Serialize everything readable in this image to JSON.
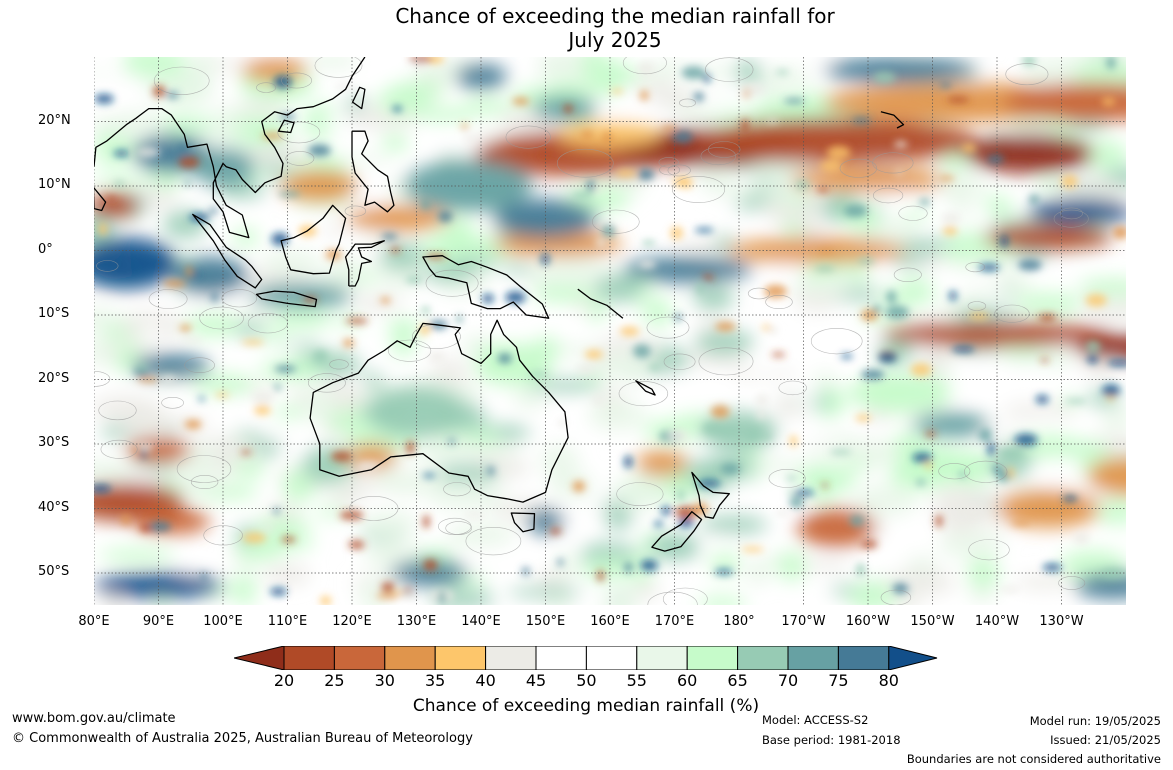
{
  "title_line1": "Chance of exceeding the median rainfall for",
  "title_line2": "July 2025",
  "lat_labels": [
    "20°N",
    "10°N",
    "0°",
    "10°S",
    "20°S",
    "30°S",
    "40°S",
    "50°S"
  ],
  "lon_labels": [
    "80°E",
    "90°E",
    "100°E",
    "110°E",
    "120°E",
    "130°E",
    "140°E",
    "150°E",
    "160°E",
    "170°E",
    "180°",
    "170°W",
    "160°W",
    "150°W",
    "140°W",
    "130°W"
  ],
  "legend": {
    "ticks": [
      "20",
      "25",
      "30",
      "35",
      "40",
      "45",
      "50",
      "55",
      "60",
      "65",
      "70",
      "75",
      "80"
    ],
    "colors": [
      "#8f2d1a",
      "#b04a27",
      "#c9673a",
      "#e0954c",
      "#fdc66b",
      "#ecebe6",
      "#ffffff",
      "#ffffff",
      "#e9f7e9",
      "#c6fbca",
      "#97cbb4",
      "#67a1a3",
      "#457a96",
      "#124f8a"
    ],
    "caption": "Chance of exceeding median rainfall (%)"
  },
  "footer": {
    "website": "www.bom.gov.au/climate",
    "copyright": "© Commonwealth of Australia 2025, Australian Bureau of Meteorology",
    "model": "Model: ACCESS-S2",
    "base_period": "Base period: 1981-2018",
    "model_run": "Model run: 19/05/2025",
    "issued": "Issued: 21/05/2025",
    "boundaries_note": "Boundaries are not considered authoritative"
  },
  "map_layers": {
    "coastline_color": "#000000",
    "gridline_color": "#555555"
  }
}
